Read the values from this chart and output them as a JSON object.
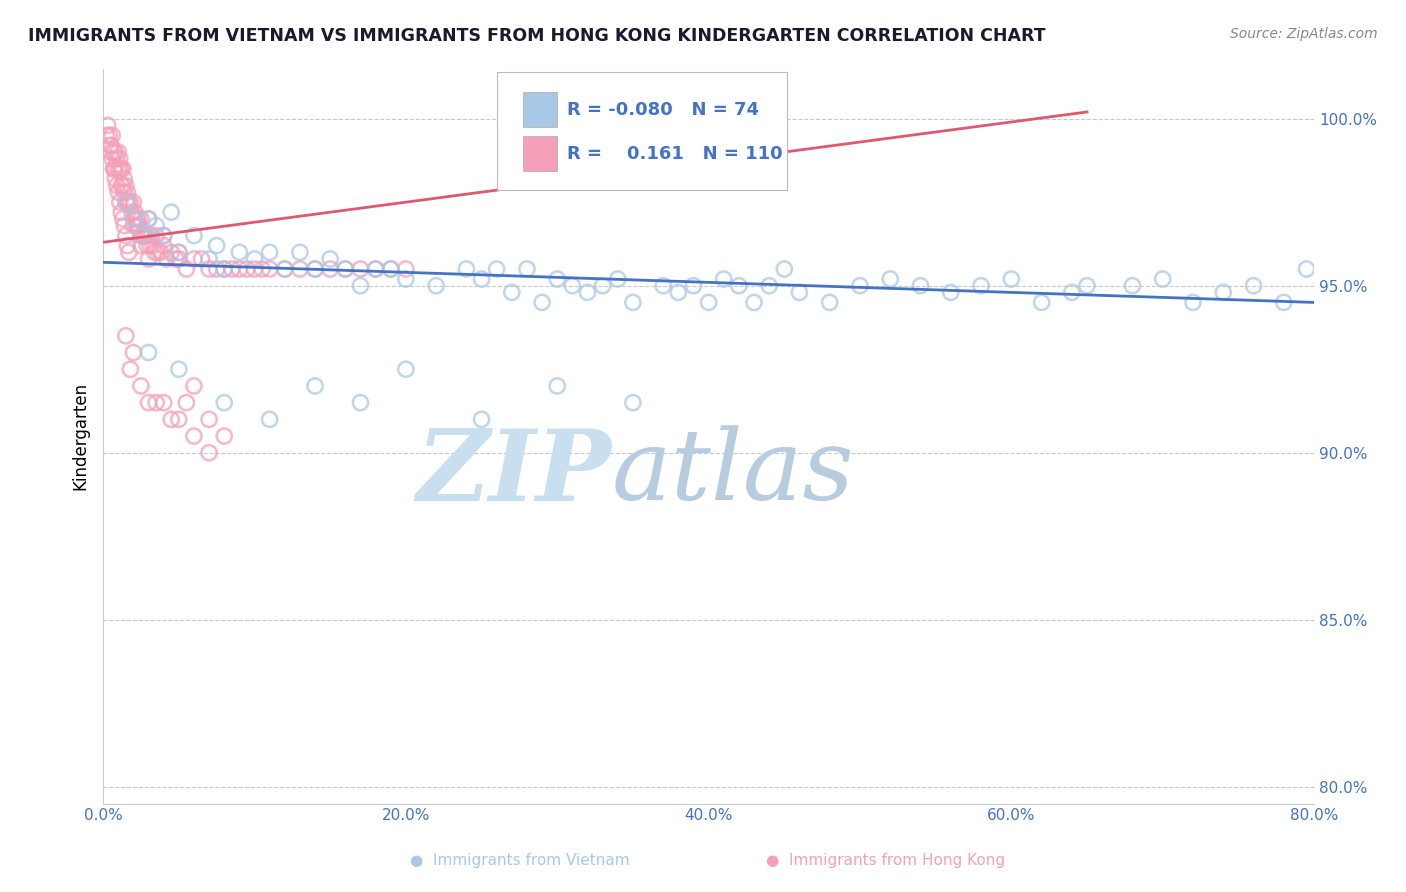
{
  "title": "IMMIGRANTS FROM VIETNAM VS IMMIGRANTS FROM HONG KONG KINDERGARTEN CORRELATION CHART",
  "source": "Source: ZipAtlas.com",
  "ylabel": "Kindergarten",
  "xlim": [
    0.0,
    80.0
  ],
  "ylim": [
    79.5,
    101.5
  ],
  "yticks": [
    80.0,
    85.0,
    90.0,
    95.0,
    100.0
  ],
  "ytick_labels": [
    "80.0%",
    "85.0%",
    "90.0%",
    "95.0%",
    "100.0%"
  ],
  "xticks": [
    0.0,
    20.0,
    40.0,
    60.0,
    80.0
  ],
  "xtick_labels": [
    "0.0%",
    "20.0%",
    "40.0%",
    "60.0%",
    "80.0%"
  ],
  "legend_entries": [
    {
      "label": "Immigrants from Vietnam",
      "color": "#a8c8e8",
      "R": "-0.080",
      "N": "74"
    },
    {
      "label": "Immigrants from Hong Kong",
      "color": "#f4a0b8",
      "R": "0.161",
      "N": "110"
    }
  ],
  "blue_scatter_x": [
    1.5,
    2.0,
    2.5,
    3.0,
    3.5,
    4.0,
    4.5,
    5.0,
    6.0,
    7.0,
    7.5,
    8.0,
    9.0,
    10.0,
    11.0,
    12.0,
    13.0,
    14.0,
    15.0,
    16.0,
    17.0,
    18.0,
    19.0,
    20.0,
    22.0,
    24.0,
    25.0,
    26.0,
    27.0,
    28.0,
    29.0,
    30.0,
    31.0,
    32.0,
    33.0,
    34.0,
    35.0,
    37.0,
    38.0,
    39.0,
    40.0,
    41.0,
    42.0,
    43.0,
    44.0,
    45.0,
    46.0,
    48.0,
    50.0,
    52.0,
    54.0,
    56.0,
    58.0,
    60.0,
    62.0,
    64.0,
    65.0,
    68.0,
    70.0,
    72.0,
    74.0,
    76.0,
    78.0,
    79.5,
    3.0,
    5.0,
    8.0,
    11.0,
    14.0,
    17.0,
    20.0,
    25.0,
    30.0,
    35.0
  ],
  "blue_scatter_y": [
    97.5,
    97.0,
    96.5,
    97.0,
    96.8,
    96.5,
    97.2,
    96.0,
    96.5,
    95.8,
    96.2,
    95.5,
    96.0,
    95.8,
    96.0,
    95.5,
    96.0,
    95.5,
    95.8,
    95.5,
    95.0,
    95.5,
    95.5,
    95.2,
    95.0,
    95.5,
    95.2,
    95.5,
    94.8,
    95.5,
    94.5,
    95.2,
    95.0,
    94.8,
    95.0,
    95.2,
    94.5,
    95.0,
    94.8,
    95.0,
    94.5,
    95.2,
    95.0,
    94.5,
    95.0,
    95.5,
    94.8,
    94.5,
    95.0,
    95.2,
    95.0,
    94.8,
    95.0,
    95.2,
    94.5,
    94.8,
    95.0,
    95.0,
    95.2,
    94.5,
    94.8,
    95.0,
    94.5,
    95.5,
    93.0,
    92.5,
    91.5,
    91.0,
    92.0,
    91.5,
    92.5,
    91.0,
    92.0,
    91.5
  ],
  "pink_scatter_x": [
    0.2,
    0.3,
    0.4,
    0.5,
    0.5,
    0.6,
    0.7,
    0.7,
    0.8,
    0.8,
    0.9,
    1.0,
    1.0,
    1.1,
    1.1,
    1.2,
    1.2,
    1.3,
    1.3,
    1.4,
    1.4,
    1.5,
    1.5,
    1.6,
    1.6,
    1.7,
    1.8,
    1.9,
    2.0,
    2.0,
    2.1,
    2.2,
    2.2,
    2.3,
    2.3,
    2.4,
    2.5,
    2.5,
    2.6,
    2.7,
    2.8,
    2.9,
    3.0,
    3.0,
    3.1,
    3.2,
    3.3,
    3.4,
    3.5,
    3.6,
    3.8,
    4.0,
    4.2,
    4.5,
    4.8,
    5.0,
    5.5,
    6.0,
    6.5,
    7.0,
    7.5,
    8.0,
    8.5,
    9.0,
    9.5,
    10.0,
    10.5,
    11.0,
    12.0,
    13.0,
    14.0,
    15.0,
    16.0,
    17.0,
    18.0,
    19.0,
    20.0,
    0.5,
    0.6,
    0.7,
    0.8,
    0.9,
    1.0,
    1.1,
    1.2,
    1.3,
    1.4,
    1.5,
    1.6,
    1.7,
    2.0,
    2.5,
    3.0,
    4.0,
    5.0,
    3.5,
    4.5,
    5.5,
    6.0,
    7.0,
    1.5,
    2.0,
    1.8,
    2.5,
    3.0,
    4.0,
    5.0,
    6.0,
    7.0,
    8.0
  ],
  "pink_scatter_y": [
    99.5,
    99.8,
    99.5,
    99.2,
    99.0,
    99.5,
    99.0,
    98.5,
    99.0,
    98.5,
    98.8,
    99.0,
    98.5,
    98.8,
    98.5,
    98.5,
    98.0,
    98.5,
    98.0,
    98.2,
    97.8,
    98.0,
    97.5,
    97.8,
    97.5,
    97.5,
    97.5,
    97.2,
    97.5,
    97.0,
    97.2,
    97.0,
    96.8,
    97.0,
    96.8,
    96.8,
    96.5,
    97.0,
    96.5,
    96.5,
    96.5,
    96.2,
    97.0,
    96.5,
    96.2,
    96.5,
    96.2,
    96.0,
    96.5,
    96.0,
    96.0,
    96.2,
    95.8,
    96.0,
    95.8,
    96.0,
    95.5,
    95.8,
    95.8,
    95.5,
    95.5,
    95.5,
    95.5,
    95.5,
    95.5,
    95.5,
    95.5,
    95.5,
    95.5,
    95.5,
    95.5,
    95.5,
    95.5,
    95.5,
    95.5,
    95.5,
    95.5,
    99.2,
    98.8,
    98.5,
    98.2,
    98.0,
    97.8,
    97.5,
    97.2,
    97.0,
    96.8,
    96.5,
    96.2,
    96.0,
    96.8,
    96.2,
    95.8,
    96.5,
    95.8,
    91.5,
    91.0,
    91.5,
    92.0,
    91.0,
    93.5,
    93.0,
    92.5,
    92.0,
    91.5,
    91.5,
    91.0,
    90.5,
    90.0,
    90.5
  ],
  "blue_line_x": [
    0.0,
    80.0
  ],
  "blue_line_y": [
    95.7,
    94.5
  ],
  "pink_line_x": [
    0.0,
    65.0
  ],
  "pink_line_y": [
    96.3,
    100.2
  ],
  "title_color": "#1a1a2e",
  "axis_color": "#4472c4",
  "dot_color_blue": "#a8c8e8",
  "dot_color_pink": "#f4a0b8",
  "line_color_blue": "#4472c4",
  "line_color_pink": "#e05870",
  "watermark_zip": "ZIP",
  "watermark_atlas": "atlas",
  "watermark_color_zip": "#c8dff0",
  "watermark_color_atlas": "#b8cce0"
}
